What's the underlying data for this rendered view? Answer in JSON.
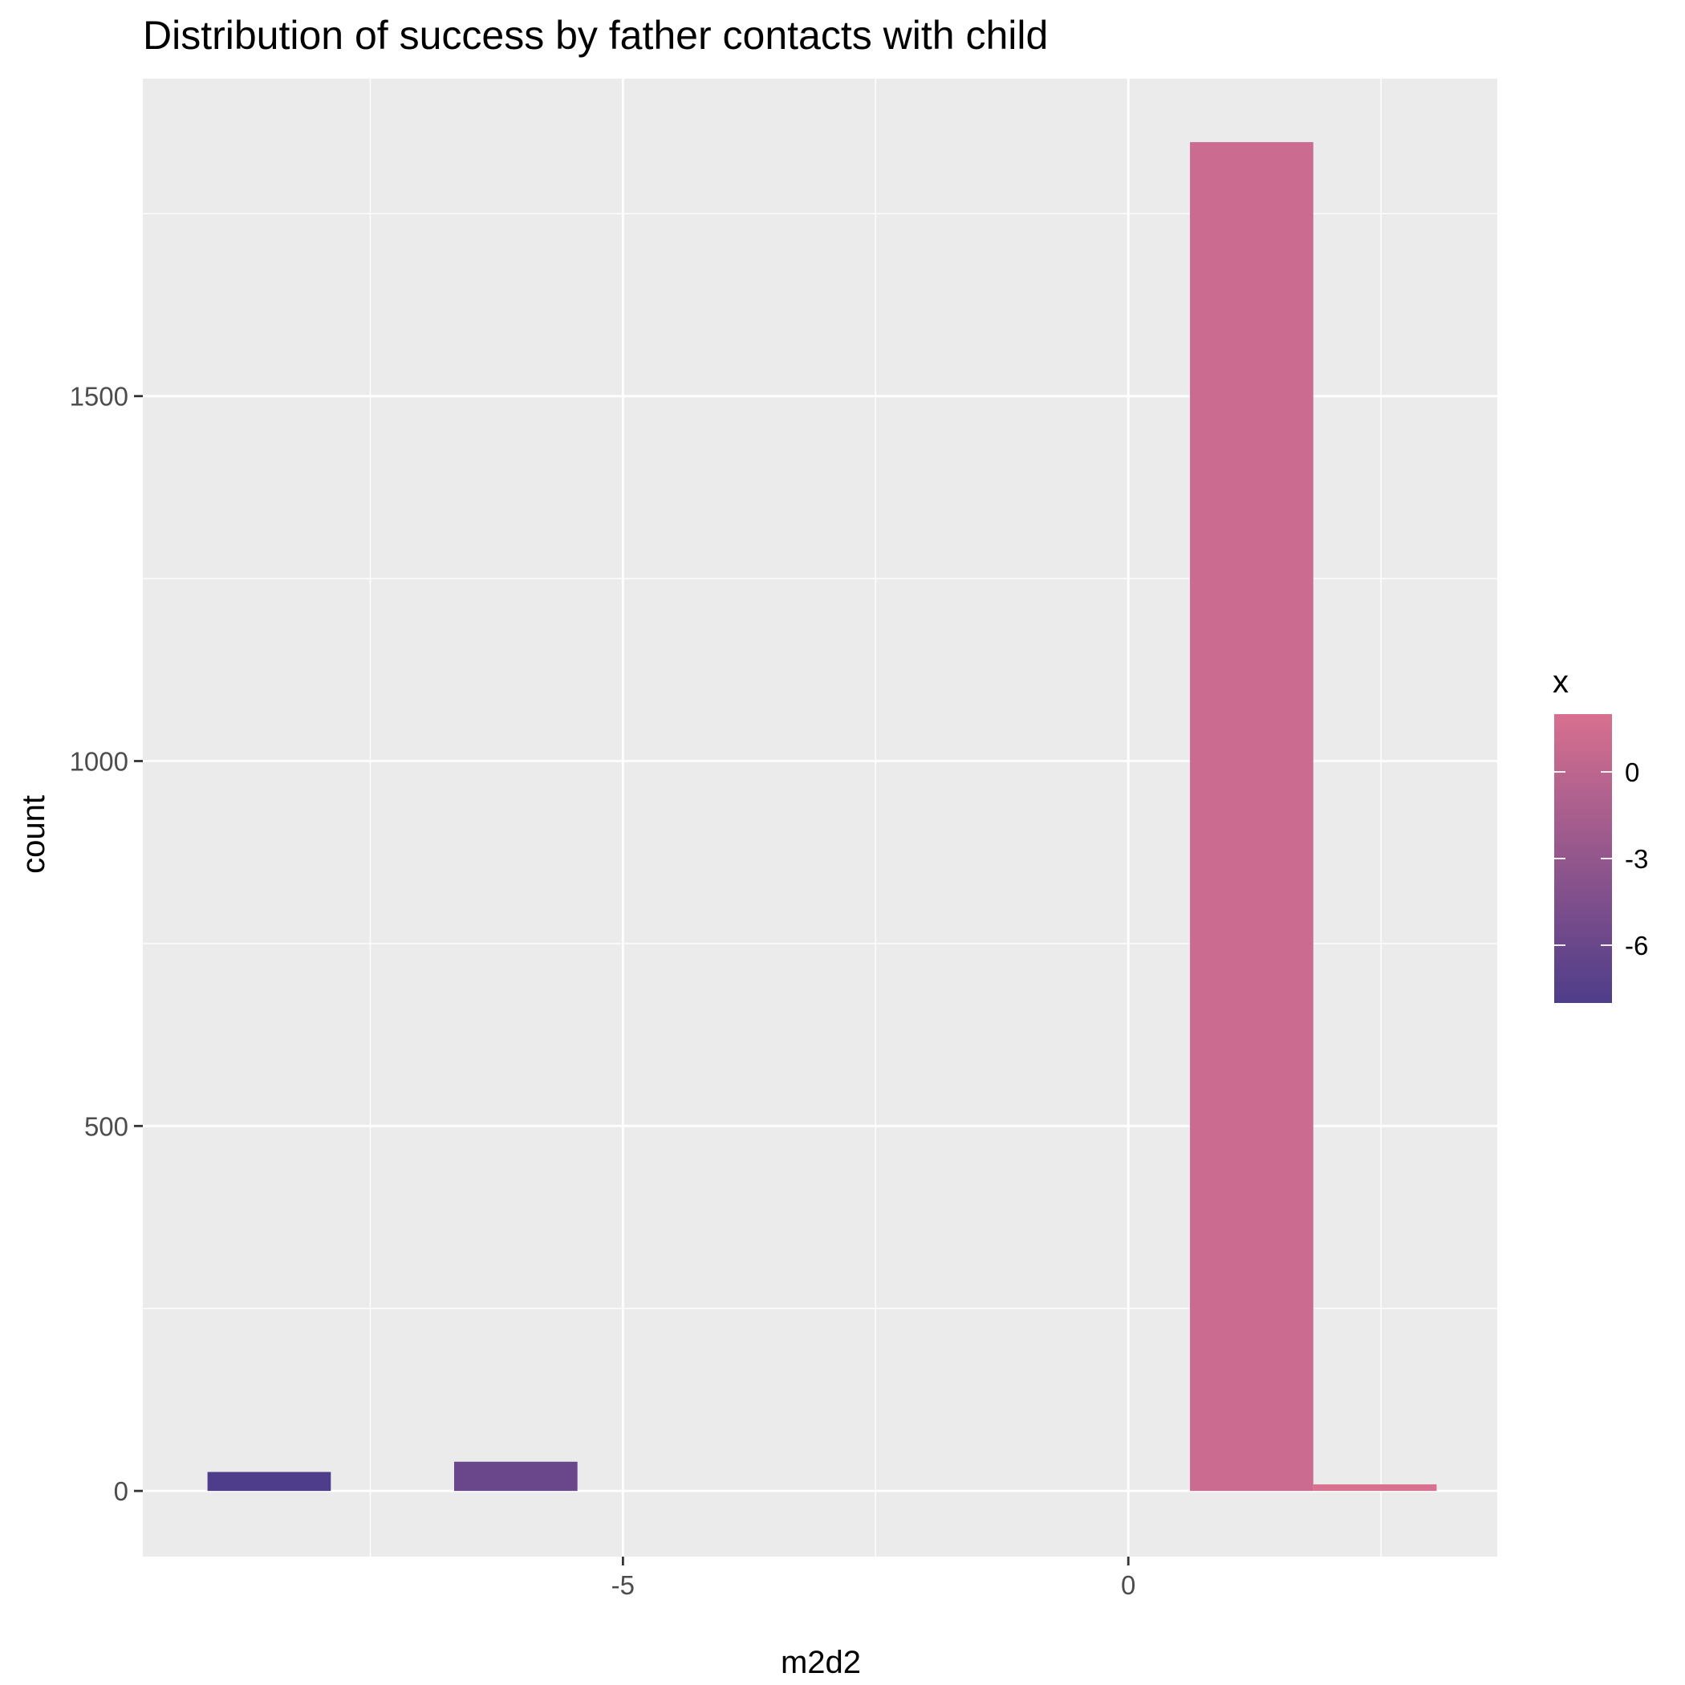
{
  "chart_data": {
    "type": "bar",
    "title": "Distribution of success by father contacts with child",
    "xlabel": "m2d2",
    "ylabel": "count",
    "xlim": [
      -9.75,
      3.65
    ],
    "ylim": [
      -90,
      1935
    ],
    "x_ticks": [
      -5,
      0
    ],
    "x_tick_labels": [
      "-5",
      "0"
    ],
    "x_minor_ticks": [
      -7.5,
      -2.5,
      2.5
    ],
    "y_ticks": [
      0,
      500,
      1000,
      1500
    ],
    "y_tick_labels": [
      "0",
      "500",
      "1000",
      "1500"
    ],
    "y_minor_ticks": [
      250,
      750,
      1250,
      1750
    ],
    "grid": true,
    "bars": [
      {
        "x": -8.5,
        "width": 1.22,
        "count": 26,
        "fill_value": -8
      },
      {
        "x": -6.06,
        "width": 1.22,
        "count": 40,
        "fill_value": -6
      },
      {
        "x": 1.22,
        "width": 1.22,
        "count": 1848,
        "fill_value": 1
      },
      {
        "x": 2.44,
        "width": 1.22,
        "count": 9,
        "fill_value": 2
      }
    ],
    "legend": {
      "title": "x",
      "position": "right",
      "range": [
        -8,
        2
      ],
      "ticks": [
        0,
        -3,
        -6
      ],
      "tick_labels": [
        "0",
        "-3",
        "-6"
      ],
      "low_color": "#4e3d8a",
      "high_color": "#d8708f"
    },
    "panel_background": "#ebebeb",
    "grid_color": "#ffffff"
  }
}
